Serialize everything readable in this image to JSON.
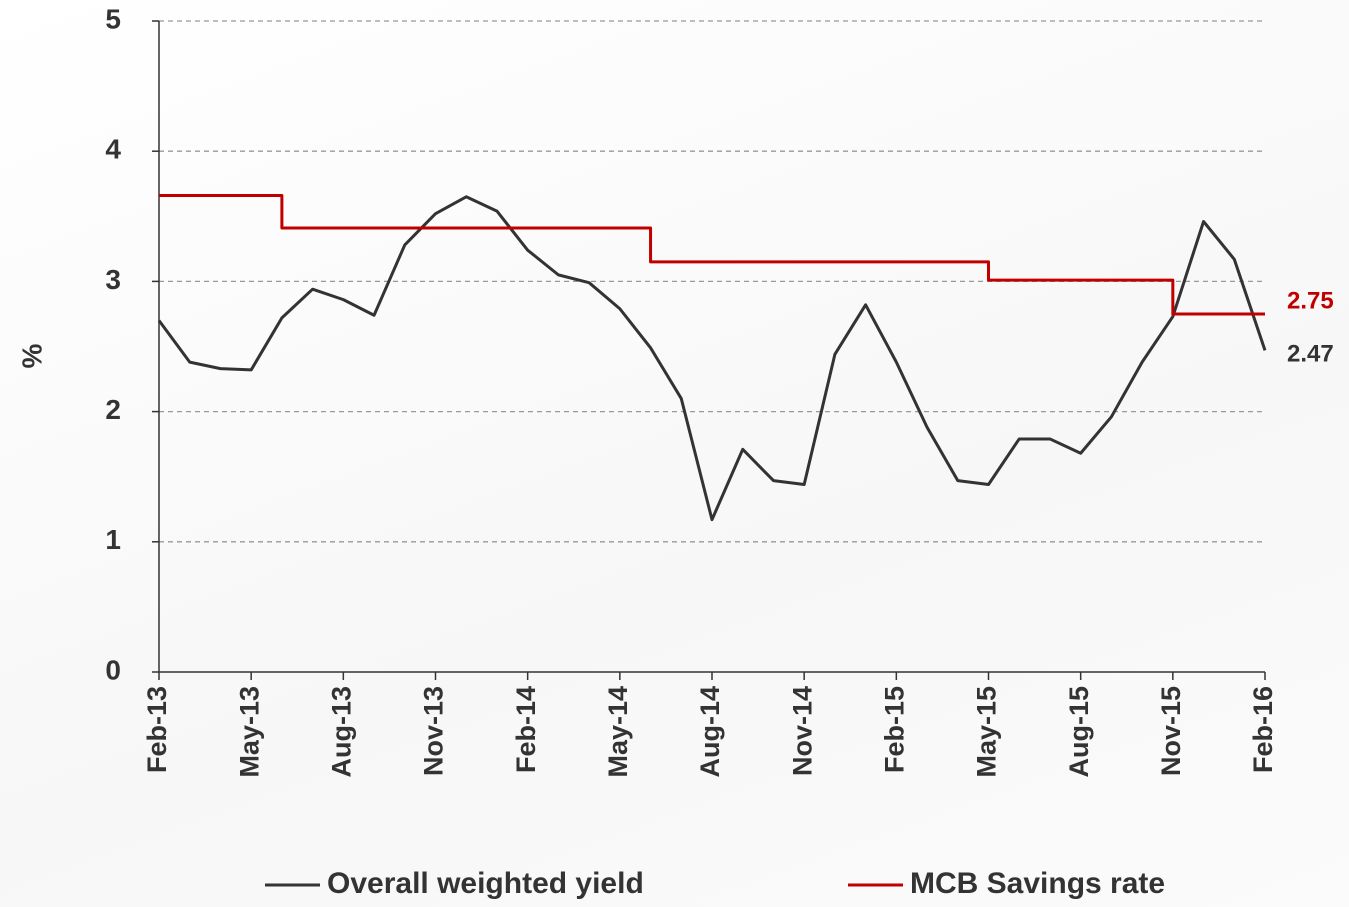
{
  "chart_data": {
    "type": "line",
    "ylabel": "%",
    "categories": [
      "Feb-13",
      null,
      null,
      "May-13",
      null,
      null,
      "Aug-13",
      null,
      null,
      "Nov-13",
      null,
      null,
      "Feb-14",
      null,
      null,
      "May-14",
      null,
      null,
      "Aug-14",
      null,
      null,
      "Nov-14",
      null,
      null,
      "Feb-15",
      null,
      null,
      "May-15",
      null,
      null,
      "Aug-15",
      null,
      null,
      "Nov-15",
      null,
      null,
      "Feb-16"
    ],
    "series": [
      {
        "name": "Overall weighted yield",
        "color": "#333333",
        "step": false,
        "label_last": true,
        "values": [
          2.7,
          2.38,
          2.33,
          2.32,
          2.72,
          2.94,
          2.86,
          2.74,
          3.28,
          3.52,
          3.65,
          3.54,
          3.24,
          3.05,
          2.99,
          2.79,
          2.49,
          2.1,
          1.17,
          1.71,
          1.47,
          1.44,
          2.44,
          2.82,
          2.38,
          1.88,
          1.47,
          1.44,
          1.79,
          1.79,
          1.68,
          1.96,
          2.38,
          2.73,
          3.46,
          3.17,
          2.47
        ]
      },
      {
        "name": "MCB Savings rate",
        "color": "#c00000",
        "step": true,
        "label_last": true,
        "values": [
          3.66,
          3.66,
          3.66,
          3.66,
          3.41,
          3.41,
          3.41,
          3.41,
          3.41,
          3.41,
          3.41,
          3.41,
          3.41,
          3.41,
          3.41,
          3.41,
          3.15,
          3.15,
          3.15,
          3.15,
          3.15,
          3.15,
          3.15,
          3.15,
          3.15,
          3.15,
          3.15,
          3.01,
          3.01,
          3.01,
          3.01,
          3.01,
          3.01,
          2.75,
          2.75,
          2.75,
          2.75
        ]
      }
    ],
    "ylim": [
      0,
      5
    ],
    "yticks": [
      0,
      1,
      2,
      3,
      4,
      5
    ],
    "grid": true,
    "legend": "bottom"
  }
}
